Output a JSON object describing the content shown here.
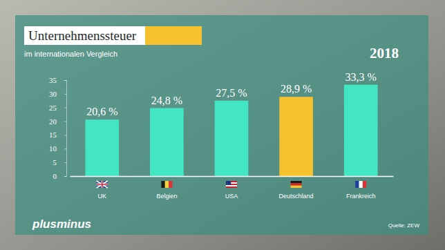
{
  "chart_data": {
    "type": "bar",
    "title": "Unternehmenssteuer",
    "subtitle": "im internationalen Vergleich",
    "annotations": [
      "2018",
      "plusminus",
      "Quelle: ZEW"
    ],
    "categories": [
      "UK",
      "Belgien",
      "USA",
      "Deutschland",
      "Frankreich"
    ],
    "values": [
      20.6,
      24.8,
      27.5,
      28.9,
      33.3
    ],
    "value_labels": [
      "20,6 %",
      "24,8 %",
      "27,5 %",
      "28,9 %",
      "33,3 %"
    ],
    "colors": [
      "#43e6c3",
      "#43e6c3",
      "#43e6c3",
      "#f6c12f",
      "#43e6c3"
    ],
    "ylim": [
      0,
      35
    ],
    "yticks": [
      0,
      5,
      10,
      15,
      20,
      25,
      30,
      35
    ],
    "grid": false,
    "data_labels": true
  }
}
